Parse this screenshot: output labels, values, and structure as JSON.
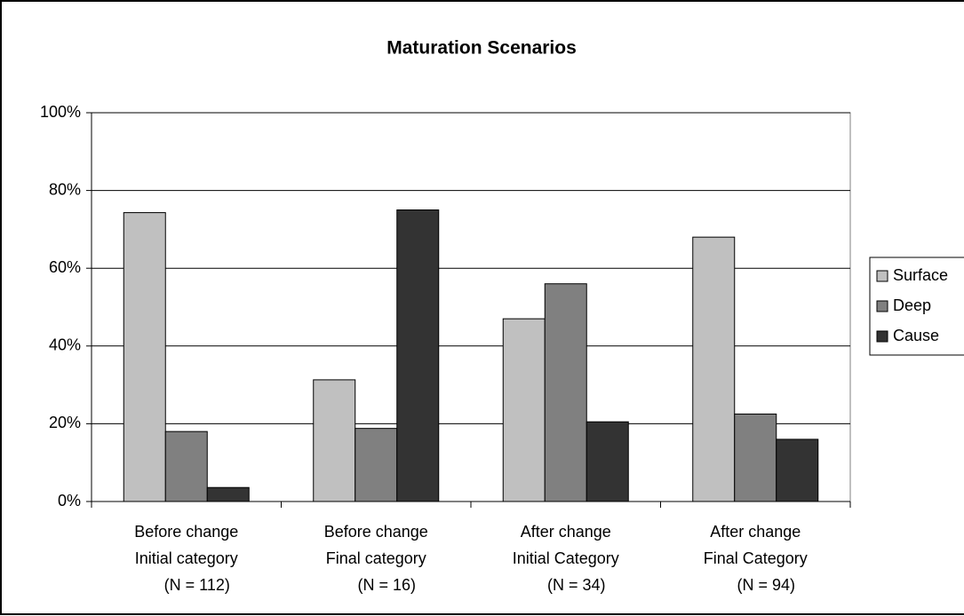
{
  "chart_data": {
    "type": "bar",
    "title": "Maturation Scenarios",
    "categories": [
      [
        "Before change",
        "Initial category",
        "(N = 112)"
      ],
      [
        "Before change",
        "Final category",
        "(N = 16)"
      ],
      [
        "After change",
        "Initial Category",
        "(N = 34)"
      ],
      [
        "After change",
        "Final Category",
        "(N = 94)"
      ]
    ],
    "series": [
      {
        "name": "Surface",
        "color": "#c0c0c0",
        "values": [
          74.3,
          31.3,
          47,
          68
        ]
      },
      {
        "name": "Deep",
        "color": "#808080",
        "values": [
          18,
          18.8,
          56,
          22.5
        ]
      },
      {
        "name": "Cause",
        "color": "#333333",
        "values": [
          3.6,
          75,
          20.5,
          16
        ]
      }
    ],
    "ylim": [
      0,
      100
    ],
    "yticks": [
      {
        "value": 0,
        "label": "0%"
      },
      {
        "value": 20,
        "label": "20%"
      },
      {
        "value": 40,
        "label": "40%"
      },
      {
        "value": 60,
        "label": "60%"
      },
      {
        "value": 80,
        "label": "80%"
      },
      {
        "value": 100,
        "label": "100%"
      }
    ],
    "grid": true,
    "legend": "right"
  }
}
